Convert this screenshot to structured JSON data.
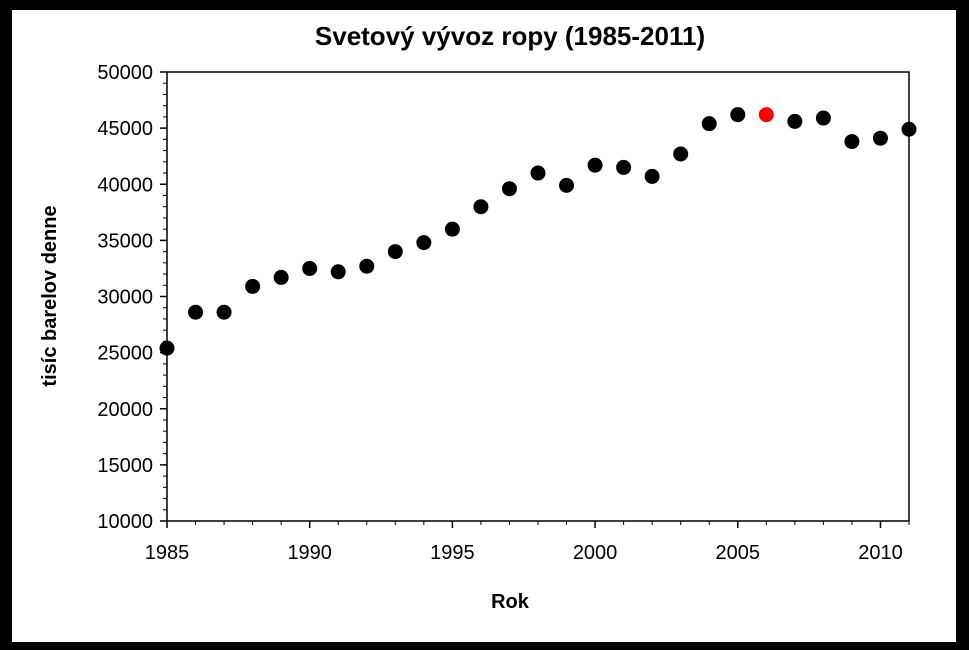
{
  "chart_data": {
    "type": "scatter",
    "title": "Svetový vývoz ropy (1985-2011)",
    "xlabel": "Rok",
    "ylabel": "tisíc barelov denne",
    "xlim": [
      1985,
      2011
    ],
    "ylim": [
      10000,
      50000
    ],
    "x_ticks": [
      1985,
      1990,
      1995,
      2000,
      2005,
      2010
    ],
    "y_ticks": [
      10000,
      15000,
      20000,
      25000,
      30000,
      35000,
      40000,
      45000,
      50000
    ],
    "grid": false,
    "legend": "none",
    "colors": {
      "default": "#000000",
      "highlight": "#ff0000"
    },
    "highlight_x": 2006,
    "x": [
      1985,
      1986,
      1987,
      1988,
      1989,
      1990,
      1991,
      1992,
      1993,
      1994,
      1995,
      1996,
      1997,
      1998,
      1999,
      2000,
      2001,
      2002,
      2003,
      2004,
      2005,
      2006,
      2007,
      2008,
      2009,
      2010,
      2011
    ],
    "y": [
      25400,
      28600,
      28600,
      30900,
      31700,
      32500,
      32200,
      32700,
      34000,
      34800,
      36000,
      38000,
      39600,
      41000,
      39900,
      41700,
      41500,
      40700,
      42700,
      45400,
      46200,
      46200,
      45600,
      45900,
      43800,
      44100,
      44900
    ]
  }
}
